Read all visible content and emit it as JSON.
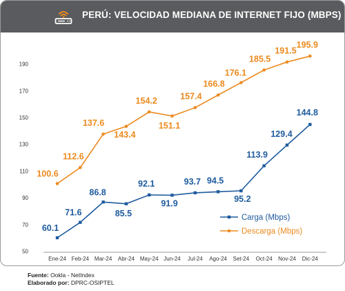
{
  "header": {
    "title": "PERÚ: VELOCIDAD MEDIANA DE INTERNET FIJO (MBPS)",
    "icon": "router-wifi-icon"
  },
  "chart_data": {
    "type": "line",
    "categories": [
      "Ene-24",
      "Feb-24",
      "Mar-24",
      "Abr-24",
      "May-24",
      "Jun-24",
      "Jul-24",
      "Ago-24",
      "Set-24",
      "Oct-24",
      "Nov-24",
      "Dic-24"
    ],
    "series": [
      {
        "name": "Carga (Mbps)",
        "color": "#1e5b9e",
        "values": [
          60.1,
          71.6,
          86.8,
          85.5,
          92.1,
          91.9,
          93.7,
          94.5,
          95.2,
          113.9,
          129.4,
          144.8
        ]
      },
      {
        "name": "Descarga (Mbps)",
        "color": "#ec8a1e",
        "values": [
          100.6,
          112.6,
          137.6,
          143.4,
          154.2,
          151.1,
          157.4,
          166.8,
          176.1,
          185.5,
          191.5,
          195.9
        ]
      }
    ],
    "ylim": [
      50,
      210
    ],
    "yticks": [
      50,
      70,
      90,
      110,
      130,
      150,
      170,
      190
    ],
    "grid": false,
    "legend_position": "bottom-right"
  },
  "footer": {
    "source_label": "Fuente:",
    "source_value": "Ookla - NetIndex",
    "author_label": "Elaborado por:",
    "author_value": "DPRC-OSIPTEL"
  }
}
